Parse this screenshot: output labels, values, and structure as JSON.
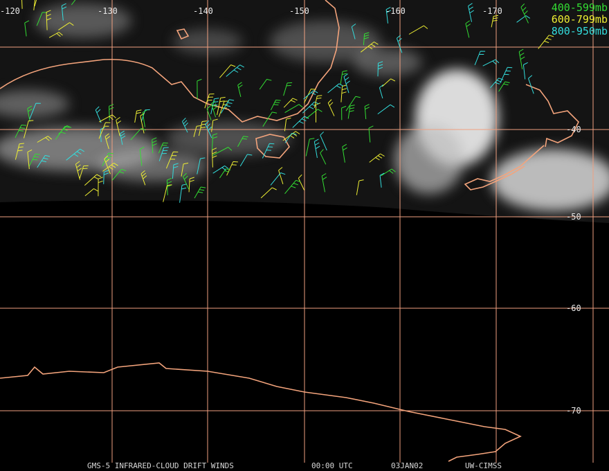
{
  "map": {
    "lon_labels": [
      "-120",
      "-130",
      "-140",
      "-150",
      "-160",
      "-170"
    ],
    "lat_labels": [
      "-40",
      "-50",
      "-60",
      "-70"
    ]
  },
  "legend": [
    {
      "label": "400-599mb",
      "color": "#33dd33"
    },
    {
      "label": "600-799mb",
      "color": "#eeee33"
    },
    {
      "label": "800-950mb",
      "color": "#33dddd"
    }
  ],
  "footer": [
    "GMS-5 INFRARED-CLOUD DRIFT WINDS",
    "00:00 UTC",
    "03JAN02",
    "UW-CIMSS"
  ]
}
